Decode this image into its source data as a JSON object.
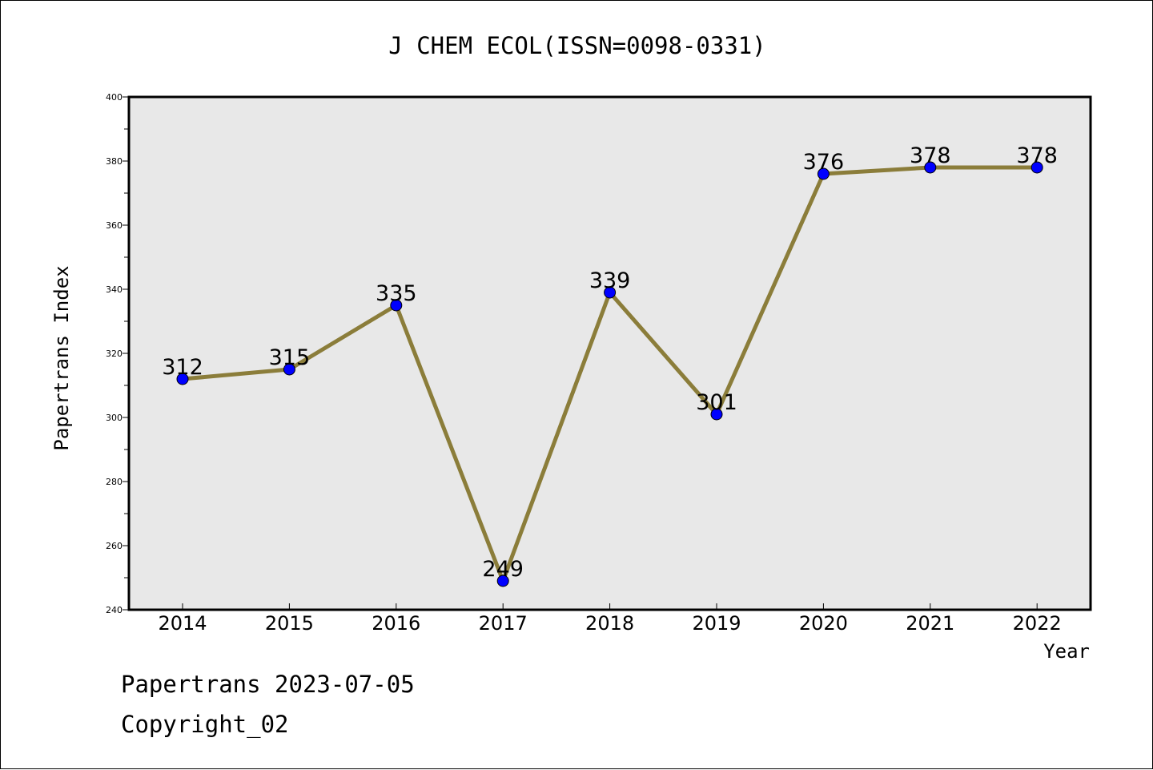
{
  "chart_data": {
    "type": "line",
    "title": "J CHEM ECOL(ISSN=0098-0331)",
    "xlabel": "Year",
    "ylabel": "Papertrans Index",
    "categories": [
      "2014",
      "2015",
      "2016",
      "2017",
      "2018",
      "2019",
      "2020",
      "2021",
      "2022"
    ],
    "values": [
      312,
      315,
      335,
      249,
      339,
      301,
      376,
      378,
      378
    ],
    "data_labels": [
      "312",
      "315",
      "335",
      "249",
      "339",
      "301",
      "376",
      "378",
      "378"
    ],
    "ylim": [
      240,
      400
    ],
    "yticks": [
      240,
      260,
      280,
      300,
      320,
      340,
      360,
      380,
      400
    ],
    "ytick_labels": [
      "240",
      "260",
      "280",
      "300",
      "320",
      "340",
      "360",
      "380",
      "400"
    ],
    "grid": false,
    "colors": {
      "line": "#8B7D3A",
      "marker": "#0000FF",
      "plot_background": "#E8E8E8"
    }
  },
  "footer": {
    "line1": "Papertrans 2023-07-05",
    "line2": "Copyright_02"
  }
}
